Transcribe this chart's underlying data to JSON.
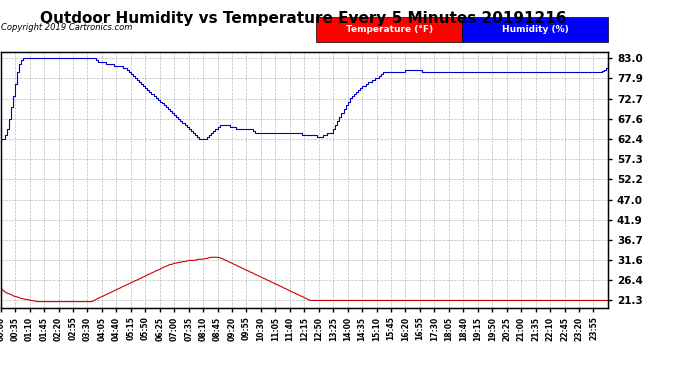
{
  "title": "Outdoor Humidity vs Temperature Every 5 Minutes 20191216",
  "copyright_text": "Copyright 2019 Cartronics.com",
  "yticks": [
    21.3,
    26.4,
    31.6,
    36.7,
    41.9,
    47.0,
    52.2,
    57.3,
    62.4,
    67.6,
    72.7,
    77.9,
    83.0
  ],
  "ymin": 19.5,
  "ymax": 84.5,
  "legend_temp_label": "Temperature (°F)",
  "legend_hum_label": "Humidity (%)",
  "legend_temp_bg": "#ff0000",
  "legend_hum_bg": "#0000ff",
  "line_temp_color": "#cc0000",
  "line_hum_color": "#0000cc",
  "background_color": "#ffffff",
  "grid_color": "#aaaaaa",
  "title_fontsize": 11,
  "humidity_data": [
    62.4,
    62.4,
    63.5,
    65.0,
    67.5,
    70.5,
    73.5,
    76.5,
    79.5,
    81.5,
    82.5,
    83.0,
    83.0,
    83.0,
    83.0,
    83.0,
    83.0,
    83.0,
    83.0,
    83.0,
    83.0,
    83.0,
    83.0,
    83.0,
    83.0,
    83.0,
    83.0,
    83.0,
    83.0,
    83.0,
    83.0,
    83.0,
    83.0,
    83.0,
    83.0,
    83.0,
    83.0,
    83.0,
    83.0,
    83.0,
    83.0,
    83.0,
    83.0,
    83.0,
    83.0,
    83.0,
    82.5,
    82.0,
    82.0,
    82.0,
    82.0,
    81.5,
    81.5,
    81.5,
    81.5,
    81.0,
    81.0,
    81.0,
    81.0,
    80.5,
    80.5,
    80.0,
    79.5,
    79.0,
    78.5,
    78.0,
    77.5,
    77.0,
    76.5,
    76.0,
    75.5,
    75.0,
    74.5,
    74.0,
    73.5,
    73.0,
    72.5,
    72.0,
    71.5,
    71.0,
    70.5,
    70.0,
    69.5,
    69.0,
    68.5,
    68.0,
    67.5,
    67.0,
    66.5,
    66.0,
    65.5,
    65.0,
    64.5,
    64.0,
    63.5,
    63.0,
    62.5,
    62.5,
    62.5,
    62.5,
    63.0,
    63.5,
    64.0,
    64.5,
    65.0,
    65.5,
    66.0,
    66.0,
    66.0,
    66.0,
    66.0,
    65.5,
    65.5,
    65.5,
    65.0,
    65.0,
    65.0,
    65.0,
    65.0,
    65.0,
    65.0,
    65.0,
    64.5,
    64.0,
    64.0,
    64.0,
    64.0,
    64.0,
    64.0,
    64.0,
    64.0,
    64.0,
    64.0,
    64.0,
    64.0,
    64.0,
    64.0,
    64.0,
    64.0,
    64.0,
    64.0,
    64.0,
    64.0,
    64.0,
    64.0,
    64.0,
    63.5,
    63.5,
    63.5,
    63.5,
    63.5,
    63.5,
    63.5,
    63.0,
    63.0,
    63.0,
    63.5,
    63.5,
    64.0,
    64.0,
    64.0,
    65.0,
    66.0,
    67.0,
    68.0,
    69.0,
    70.0,
    71.0,
    72.0,
    73.0,
    73.5,
    74.0,
    74.5,
    75.0,
    75.5,
    76.0,
    76.0,
    76.5,
    77.0,
    77.0,
    77.5,
    78.0,
    78.0,
    78.5,
    79.0,
    79.5,
    79.5,
    79.5,
    79.5,
    79.5,
    79.5,
    79.5,
    79.5,
    79.5,
    79.5,
    79.5,
    80.0,
    80.0,
    80.0,
    80.0,
    80.0,
    80.0,
    80.0,
    80.0,
    79.5,
    79.5,
    79.5,
    79.5,
    79.5,
    79.5,
    79.5,
    79.5,
    79.5,
    79.5,
    79.5,
    79.5,
    79.5,
    79.5,
    79.5,
    79.5,
    79.5,
    79.5,
    79.5,
    79.5,
    79.5,
    79.5,
    79.5,
    79.5,
    79.5,
    79.5,
    79.5,
    79.5,
    79.5,
    79.5,
    79.5,
    79.5,
    79.5,
    79.5,
    79.5,
    79.5,
    79.5,
    79.5,
    79.5,
    79.5,
    79.5,
    79.5,
    79.5,
    79.5,
    79.5,
    79.5,
    79.5,
    79.5,
    79.5,
    79.5,
    79.5,
    79.5,
    79.5,
    79.5,
    79.5,
    79.5,
    79.5,
    79.5,
    79.5,
    79.5,
    79.5,
    79.5,
    79.5,
    79.5,
    79.5,
    79.5,
    79.5,
    79.5,
    79.5,
    79.5,
    79.5,
    79.5,
    79.5,
    79.5,
    79.5,
    79.5,
    79.5,
    79.5,
    79.5,
    79.5,
    79.5,
    79.5,
    79.5,
    79.5,
    79.5,
    79.5,
    79.5,
    79.8,
    80.0,
    80.5,
    81.0
  ],
  "temperature_data": [
    24.5,
    24.0,
    23.5,
    23.2,
    23.0,
    22.8,
    22.5,
    22.3,
    22.2,
    22.0,
    21.8,
    21.7,
    21.6,
    21.5,
    21.4,
    21.3,
    21.2,
    21.1,
    21.0,
    21.0,
    21.0,
    21.0,
    21.0,
    21.0,
    21.0,
    21.0,
    21.0,
    21.0,
    21.0,
    21.0,
    21.0,
    21.0,
    21.0,
    21.0,
    21.0,
    21.0,
    21.0,
    21.0,
    21.0,
    21.0,
    21.0,
    21.0,
    21.0,
    21.0,
    21.0,
    21.2,
    21.5,
    21.8,
    22.0,
    22.3,
    22.5,
    22.8,
    23.0,
    23.3,
    23.5,
    23.8,
    24.0,
    24.3,
    24.5,
    24.8,
    25.0,
    25.3,
    25.5,
    25.8,
    26.0,
    26.3,
    26.5,
    26.8,
    27.0,
    27.3,
    27.5,
    27.8,
    28.0,
    28.3,
    28.5,
    28.8,
    29.0,
    29.2,
    29.5,
    29.8,
    30.0,
    30.2,
    30.5,
    30.5,
    30.8,
    30.8,
    31.0,
    31.0,
    31.2,
    31.2,
    31.3,
    31.5,
    31.5,
    31.5,
    31.5,
    31.7,
    31.8,
    31.8,
    31.8,
    32.0,
    32.0,
    32.2,
    32.3,
    32.3,
    32.3,
    32.3,
    32.2,
    32.0,
    31.8,
    31.5,
    31.3,
    31.0,
    30.8,
    30.5,
    30.3,
    30.0,
    29.8,
    29.5,
    29.3,
    29.0,
    28.8,
    28.5,
    28.3,
    28.0,
    27.8,
    27.5,
    27.3,
    27.0,
    26.8,
    26.5,
    26.3,
    26.0,
    25.8,
    25.5,
    25.3,
    25.0,
    24.8,
    24.5,
    24.3,
    24.0,
    23.8,
    23.5,
    23.3,
    23.0,
    22.8,
    22.5,
    22.3,
    22.0,
    21.8,
    21.5,
    21.3,
    21.3,
    21.3,
    21.3,
    21.3,
    21.3,
    21.3,
    21.3,
    21.3,
    21.3,
    21.3,
    21.3,
    21.3,
    21.3,
    21.3,
    21.3,
    21.3,
    21.3,
    21.3,
    21.3,
    21.3,
    21.3,
    21.3,
    21.3,
    21.3,
    21.3,
    21.3,
    21.3,
    21.3,
    21.3,
    21.3,
    21.3,
    21.3,
    21.3,
    21.3,
    21.3,
    21.3,
    21.3,
    21.3,
    21.3,
    21.3,
    21.3,
    21.3,
    21.3,
    21.3,
    21.3,
    21.3,
    21.3,
    21.3,
    21.3,
    21.3,
    21.3,
    21.3,
    21.3,
    21.3,
    21.3,
    21.3,
    21.3,
    21.3,
    21.3,
    21.3,
    21.3,
    21.3,
    21.3,
    21.3,
    21.3,
    21.3,
    21.3,
    21.3,
    21.3,
    21.3,
    21.3,
    21.3,
    21.3,
    21.3,
    21.3,
    21.3,
    21.3,
    21.3,
    21.3,
    21.3,
    21.3,
    21.3,
    21.3,
    21.3,
    21.3,
    21.3,
    21.3,
    21.3,
    21.3,
    21.3,
    21.3,
    21.3,
    21.3,
    21.3,
    21.3,
    21.3,
    21.3,
    21.3,
    21.3,
    21.3,
    21.3,
    21.3,
    21.3,
    21.3,
    21.3,
    21.3,
    21.3,
    21.3,
    21.3,
    21.3,
    21.3,
    21.3,
    21.3,
    21.3,
    21.3,
    21.3,
    21.3,
    21.3,
    21.3,
    21.3,
    21.3,
    21.3,
    21.3,
    21.3,
    21.3,
    21.3,
    21.3,
    21.3,
    21.3,
    21.3,
    21.3,
    21.3,
    21.3,
    21.3,
    21.3,
    21.3,
    21.3,
    21.3,
    21.3,
    21.3,
    21.3,
    21.3,
    21.3,
    21.3
  ],
  "xtick_labels": [
    "00:00",
    "00:35",
    "01:10",
    "01:45",
    "02:20",
    "02:55",
    "03:30",
    "04:05",
    "04:40",
    "05:15",
    "05:50",
    "06:25",
    "07:00",
    "07:35",
    "08:10",
    "08:45",
    "09:20",
    "09:55",
    "10:30",
    "11:05",
    "11:40",
    "12:15",
    "12:50",
    "13:25",
    "14:00",
    "14:35",
    "15:10",
    "15:45",
    "16:20",
    "16:55",
    "17:30",
    "18:05",
    "18:40",
    "19:15",
    "19:50",
    "20:25",
    "21:00",
    "21:35",
    "22:10",
    "22:45",
    "23:20",
    "23:55"
  ]
}
